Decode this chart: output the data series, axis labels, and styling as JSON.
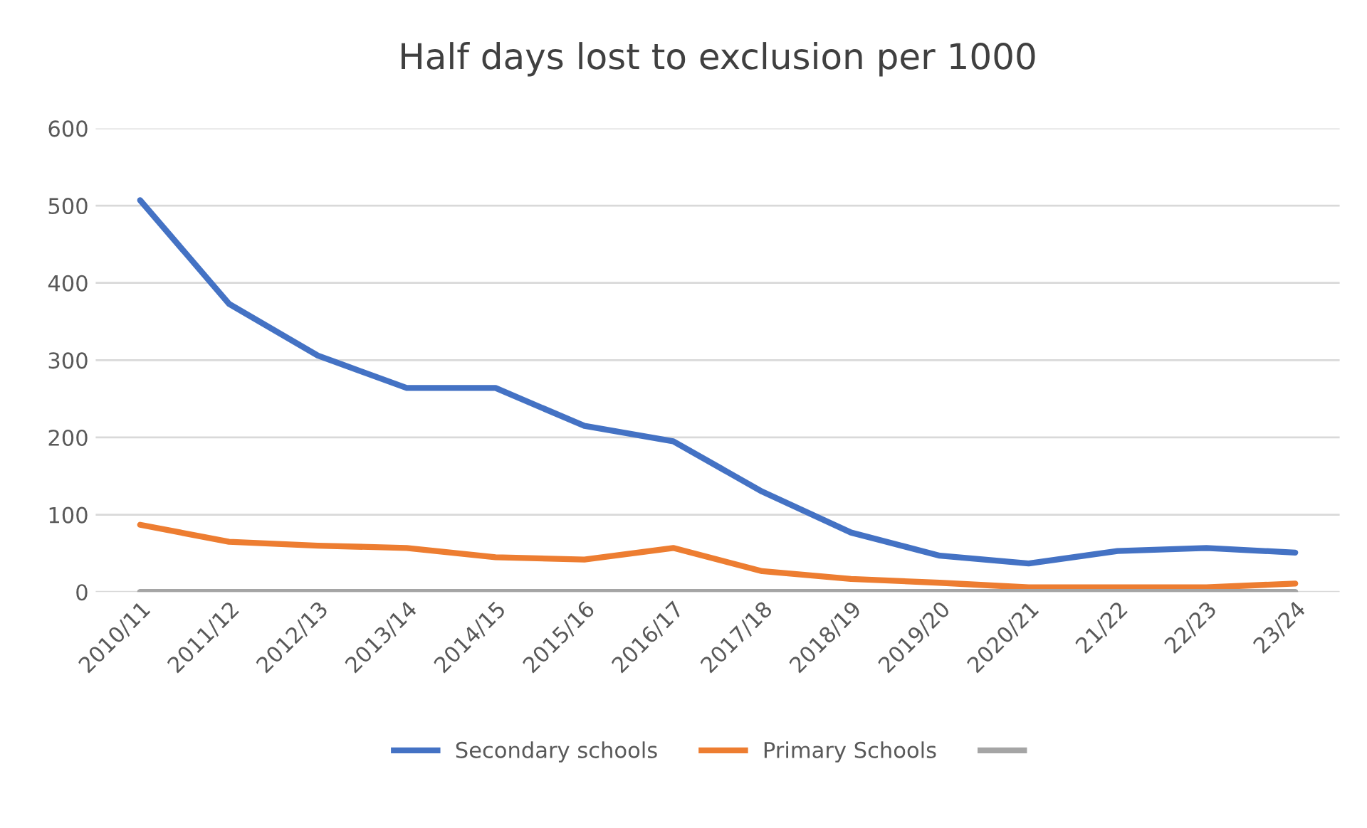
{
  "chart_data": {
    "type": "line",
    "title": "Half days lost to exclusion per 1000",
    "categories": [
      "2010/11",
      "2011/12",
      "2012/13",
      "2013/14",
      "2014/15",
      "2015/16",
      "2016/17",
      "2017/18",
      "2018/19",
      "2019/20",
      "2020/21",
      "21/22",
      "22/23",
      "23/24"
    ],
    "series": [
      {
        "name": "Secondary schools",
        "color": "#4472c4",
        "values": [
          507,
          373,
          306,
          264,
          264,
          215,
          195,
          130,
          77,
          47,
          37,
          53,
          57,
          51
        ]
      },
      {
        "name": "Primary Schools",
        "color": "#ed7d31",
        "values": [
          87,
          65,
          60,
          57,
          45,
          42,
          57,
          27,
          17,
          12,
          6,
          6,
          6,
          11
        ]
      },
      {
        "color": "#a5a5a5",
        "values": [
          0,
          0,
          0,
          0,
          0,
          0,
          0,
          0,
          0,
          0,
          0,
          0,
          0,
          0
        ]
      }
    ],
    "ylim": [
      0,
      600
    ],
    "yticks": [
      0,
      100,
      200,
      300,
      400,
      500,
      600
    ],
    "grid": "y",
    "legend": "bottom",
    "marker": "none",
    "line_style": "solid"
  }
}
